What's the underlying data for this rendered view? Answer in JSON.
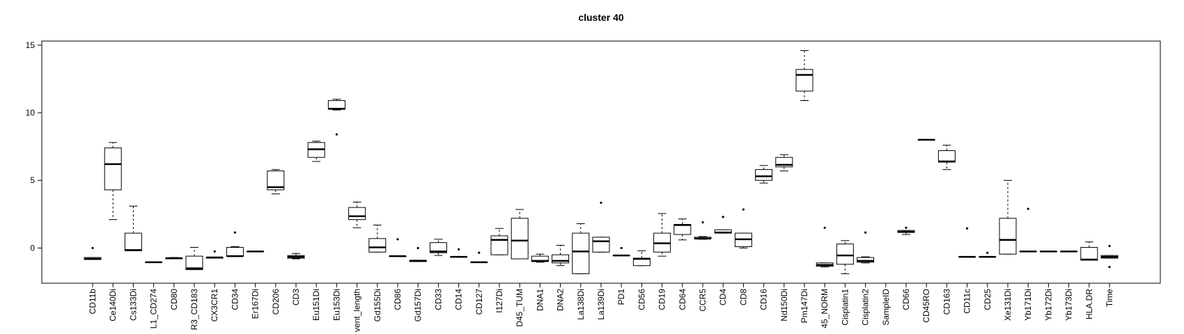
{
  "chart_data": {
    "type": "box",
    "title": "cluster 40",
    "categories": [
      "CD11b",
      "Ce140Di",
      "Cs133Di",
      "L1_CD274",
      "CD80",
      "R3_CD183",
      "CX3CR1",
      "CD34",
      "Er167Di",
      "CD206",
      "CD3",
      "Eu151Di",
      "Eu153Di",
      "vent_length",
      "Gd155Di",
      "CD86",
      "Gd157Di",
      "CD33",
      "CD14",
      "CD127",
      "I127Di",
      "D45_TUM",
      "DNA1",
      "DNA2",
      "La138Di",
      "La139Di",
      "PD1",
      "CD56",
      "CD19",
      "CD64",
      "CCR5",
      "CD4",
      "CD8",
      "CD16",
      "Nd150Di",
      "Pm147Di",
      "45_NORM",
      "Cisplatin1",
      "Cisplatin2",
      "SampleID",
      "CD66",
      "CD45RO",
      "CD163",
      "CD11c",
      "CD25",
      "Xe131Di",
      "Yb171Di",
      "Yb172Di",
      "Yb173Di",
      "HLA.DR",
      "Time"
    ],
    "min": [
      -0.85,
      2.1,
      -0.2,
      -1.05,
      -0.8,
      -1.6,
      -0.75,
      -0.6,
      -0.25,
      4.0,
      -0.8,
      6.4,
      10.2,
      1.5,
      -0.3,
      -0.6,
      -1.0,
      -0.55,
      -0.65,
      -1.05,
      -0.5,
      -0.8,
      -1.05,
      -1.3,
      -1.9,
      -0.3,
      -0.55,
      -1.3,
      -0.6,
      0.6,
      0.65,
      1.1,
      0.0,
      4.8,
      5.7,
      10.9,
      -1.4,
      -1.9,
      -1.1,
      null,
      1.0,
      8.0,
      5.8,
      -0.65,
      -0.65,
      -0.45,
      -0.25,
      -0.25,
      -0.25,
      -0.9,
      -0.75
    ],
    "q1": [
      -0.85,
      4.3,
      -0.2,
      -1.05,
      -0.8,
      -1.6,
      -0.75,
      -0.6,
      -0.25,
      4.3,
      -0.75,
      6.7,
      10.25,
      2.1,
      -0.3,
      -0.6,
      -1.0,
      -0.35,
      -0.65,
      -1.05,
      -0.5,
      -0.8,
      -1.0,
      -1.1,
      -1.9,
      -0.3,
      -0.55,
      -1.3,
      -0.3,
      1.0,
      0.7,
      1.1,
      0.1,
      5.0,
      6.0,
      11.6,
      -1.35,
      -1.2,
      -1.05,
      null,
      1.15,
      8.0,
      6.35,
      -0.65,
      -0.65,
      -0.45,
      -0.25,
      -0.25,
      -0.25,
      -0.9,
      -0.75
    ],
    "median": [
      -0.8,
      6.2,
      -0.15,
      -1.05,
      -0.75,
      -1.5,
      -0.7,
      -0.6,
      -0.25,
      4.5,
      -0.65,
      7.3,
      10.3,
      2.35,
      0.05,
      -0.6,
      -0.95,
      -0.25,
      -0.65,
      -1.05,
      0.6,
      0.55,
      -0.95,
      -0.95,
      -0.25,
      0.5,
      -0.55,
      -0.8,
      0.35,
      1.7,
      0.7,
      1.15,
      0.65,
      5.3,
      6.15,
      12.8,
      -1.25,
      -0.55,
      -0.95,
      null,
      1.2,
      8.0,
      6.4,
      -0.65,
      -0.65,
      0.6,
      -0.25,
      -0.25,
      -0.25,
      -0.85,
      -0.65
    ],
    "q3": [
      -0.7,
      7.4,
      1.1,
      -1.05,
      -0.75,
      -0.6,
      -0.7,
      0.05,
      -0.25,
      5.7,
      -0.55,
      7.8,
      10.9,
      3.0,
      0.7,
      -0.6,
      -0.9,
      0.4,
      -0.65,
      -1.05,
      0.9,
      2.2,
      -0.6,
      -0.5,
      1.1,
      0.8,
      -0.55,
      -0.75,
      1.1,
      1.75,
      0.8,
      1.35,
      1.1,
      5.8,
      6.7,
      13.2,
      -1.1,
      0.3,
      -0.7,
      null,
      1.3,
      8.0,
      7.2,
      -0.65,
      -0.65,
      2.2,
      -0.25,
      -0.25,
      -0.25,
      0.05,
      -0.55
    ],
    "max": [
      -0.7,
      7.8,
      3.1,
      -1.05,
      -0.7,
      0.05,
      -0.7,
      0.1,
      -0.25,
      5.8,
      -0.4,
      7.9,
      11.0,
      3.4,
      1.7,
      -0.6,
      -0.9,
      0.65,
      -0.65,
      -1.05,
      1.45,
      2.85,
      -0.45,
      0.2,
      1.8,
      0.8,
      -0.55,
      -0.2,
      2.55,
      2.15,
      0.85,
      1.35,
      1.1,
      6.1,
      6.9,
      14.6,
      -1.1,
      0.55,
      -0.65,
      null,
      1.3,
      8.0,
      7.6,
      -0.65,
      -0.65,
      5.0,
      -0.25,
      -0.25,
      -0.25,
      0.45,
      -0.55
    ],
    "outliers": [
      [
        0.0
      ],
      [],
      [],
      [],
      [],
      [],
      [
        -0.25
      ],
      [
        1.15
      ],
      [],
      [],
      [],
      [],
      [
        8.4
      ],
      [],
      [],
      [
        0.65
      ],
      [
        0.0
      ],
      [],
      [
        -0.1
      ],
      [
        -0.35
      ],
      [],
      [],
      [],
      [],
      [],
      [
        3.35
      ],
      [
        0.0
      ],
      [],
      [],
      [],
      [
        1.9
      ],
      [
        2.3
      ],
      [
        2.85
      ],
      [],
      [],
      [],
      [
        1.5
      ],
      [],
      [
        1.15
      ],
      [],
      [
        1.5
      ],
      [],
      [],
      [
        1.45
      ],
      [
        -0.35
      ],
      [],
      [
        2.9
      ],
      [],
      [],
      [],
      [
        0.15,
        -1.4
      ]
    ],
    "ylim": [
      -2.6,
      15.3
    ],
    "yticks": [
      0,
      5,
      10,
      15
    ],
    "color": "#000000"
  }
}
